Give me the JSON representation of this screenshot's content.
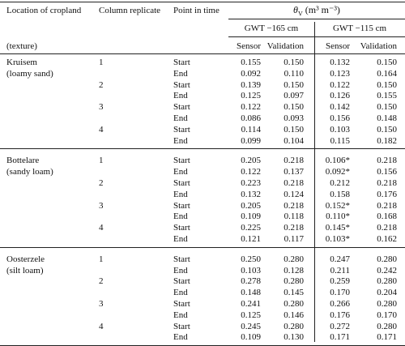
{
  "header": {
    "location": "Location of cropland",
    "texture": "(texture)",
    "replicate": "Column replicate",
    "time": "Point in time",
    "theta": "θ",
    "theta_sub": "V",
    "unit": "(m³ m⁻³)",
    "gwt": [
      "GWT −165 cm",
      "GWT −115 cm"
    ],
    "measures": [
      "Sensor",
      "Validation",
      "Sensor",
      "Validation"
    ]
  },
  "groups": [
    {
      "location": "Kruisem",
      "texture": "(loamy sand)",
      "replicates": [
        {
          "label": "1",
          "rows": [
            {
              "time": "Start",
              "values": [
                "0.155",
                "0.150",
                "0.132",
                "0.150"
              ]
            },
            {
              "time": "End",
              "values": [
                "0.092",
                "0.110",
                "0.123",
                "0.164"
              ]
            }
          ]
        },
        {
          "label": "2",
          "rows": [
            {
              "time": "Start",
              "values": [
                "0.139",
                "0.150",
                "0.122",
                "0.150"
              ]
            },
            {
              "time": "End",
              "values": [
                "0.125",
                "0.097",
                "0.126",
                "0.155"
              ]
            }
          ]
        },
        {
          "label": "3",
          "rows": [
            {
              "time": "Start",
              "values": [
                "0.122",
                "0.150",
                "0.142",
                "0.150"
              ]
            },
            {
              "time": "End",
              "values": [
                "0.086",
                "0.093",
                "0.156",
                "0.148"
              ]
            }
          ]
        },
        {
          "label": "4",
          "rows": [
            {
              "time": "Start",
              "values": [
                "0.114",
                "0.150",
                "0.103",
                "0.150"
              ]
            },
            {
              "time": "End",
              "values": [
                "0.099",
                "0.104",
                "0.115",
                "0.182"
              ]
            }
          ]
        }
      ]
    },
    {
      "location": "Bottelare",
      "texture": "(sandy loam)",
      "replicates": [
        {
          "label": "1",
          "rows": [
            {
              "time": "Start",
              "values": [
                "0.205",
                "0.218",
                "0.106*",
                "0.218"
              ]
            },
            {
              "time": "End",
              "values": [
                "0.122",
                "0.137",
                "0.092*",
                "0.156"
              ]
            }
          ]
        },
        {
          "label": "2",
          "rows": [
            {
              "time": "Start",
              "values": [
                "0.223",
                "0.218",
                "0.212",
                "0.218"
              ]
            },
            {
              "time": "End",
              "values": [
                "0.132",
                "0.124",
                "0.158",
                "0.176"
              ]
            }
          ]
        },
        {
          "label": "3",
          "rows": [
            {
              "time": "Start",
              "values": [
                "0.205",
                "0.218",
                "0.152*",
                "0.218"
              ]
            },
            {
              "time": "End",
              "values": [
                "0.109",
                "0.118",
                "0.110*",
                "0.168"
              ]
            }
          ]
        },
        {
          "label": "4",
          "rows": [
            {
              "time": "Start",
              "values": [
                "0.225",
                "0.218",
                "0.145*",
                "0.218"
              ]
            },
            {
              "time": "End",
              "values": [
                "0.121",
                "0.117",
                "0.103*",
                "0.162"
              ]
            }
          ]
        }
      ]
    },
    {
      "location": "Oosterzele",
      "texture": "(silt loam)",
      "replicates": [
        {
          "label": "1",
          "rows": [
            {
              "time": "Start",
              "values": [
                "0.250",
                "0.280",
                "0.247",
                "0.280"
              ]
            },
            {
              "time": "End",
              "values": [
                "0.103",
                "0.128",
                "0.211",
                "0.242"
              ]
            }
          ]
        },
        {
          "label": "2",
          "rows": [
            {
              "time": "Start",
              "values": [
                "0.278",
                "0.280",
                "0.259",
                "0.280"
              ]
            },
            {
              "time": "End",
              "values": [
                "0.148",
                "0.145",
                "0.170",
                "0.204"
              ]
            }
          ]
        },
        {
          "label": "3",
          "rows": [
            {
              "time": "Start",
              "values": [
                "0.241",
                "0.280",
                "0.266",
                "0.280"
              ]
            },
            {
              "time": "End",
              "values": [
                "0.125",
                "0.146",
                "0.176",
                "0.170"
              ]
            }
          ]
        },
        {
          "label": "4",
          "rows": [
            {
              "time": "Start",
              "values": [
                "0.245",
                "0.280",
                "0.272",
                "0.280"
              ]
            },
            {
              "time": "End",
              "values": [
                "0.109",
                "0.130",
                "0.171",
                "0.171"
              ]
            }
          ]
        }
      ]
    }
  ]
}
